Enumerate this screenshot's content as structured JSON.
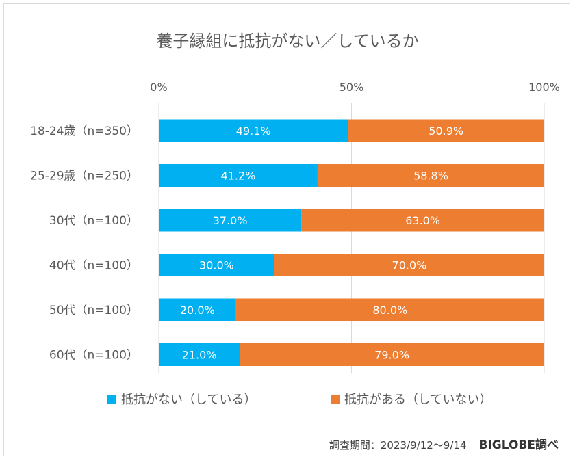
{
  "chart_data": {
    "type": "bar",
    "orientation": "horizontal",
    "stacked": true,
    "title": "養子縁組に抵抗がない／しているか",
    "categories": [
      "18-24歳（n=350）",
      "25-29歳（n=250）",
      "30代（n=100）",
      "40代（n=100）",
      "50代（n=100）",
      "60代（n=100）"
    ],
    "series": [
      {
        "name": "抵抗がない（している）",
        "color": "#00b0f0",
        "values": [
          49.1,
          41.2,
          37.0,
          30.0,
          20.0,
          21.0
        ],
        "labels": [
          "49.1%",
          "41.2%",
          "37.0%",
          "30.0%",
          "20.0%",
          "21.0%"
        ]
      },
      {
        "name": "抵抗がある（していない）",
        "color": "#ed7d31",
        "values": [
          50.9,
          58.8,
          63.0,
          70.0,
          80.0,
          79.0
        ],
        "labels": [
          "50.9%",
          "58.8%",
          "63.0%",
          "70.0%",
          "80.0%",
          "79.0%"
        ]
      }
    ],
    "xlim": [
      0,
      100
    ],
    "x_ticks": [
      0,
      50,
      100
    ],
    "x_tick_labels": [
      "0%",
      "50%",
      "100%"
    ],
    "x_axis_position": "top",
    "grid": true,
    "legend_position": "bottom"
  },
  "footer": {
    "period": "調査期間：2023/9/12～9/14",
    "source": "BIGLOBE調べ"
  }
}
